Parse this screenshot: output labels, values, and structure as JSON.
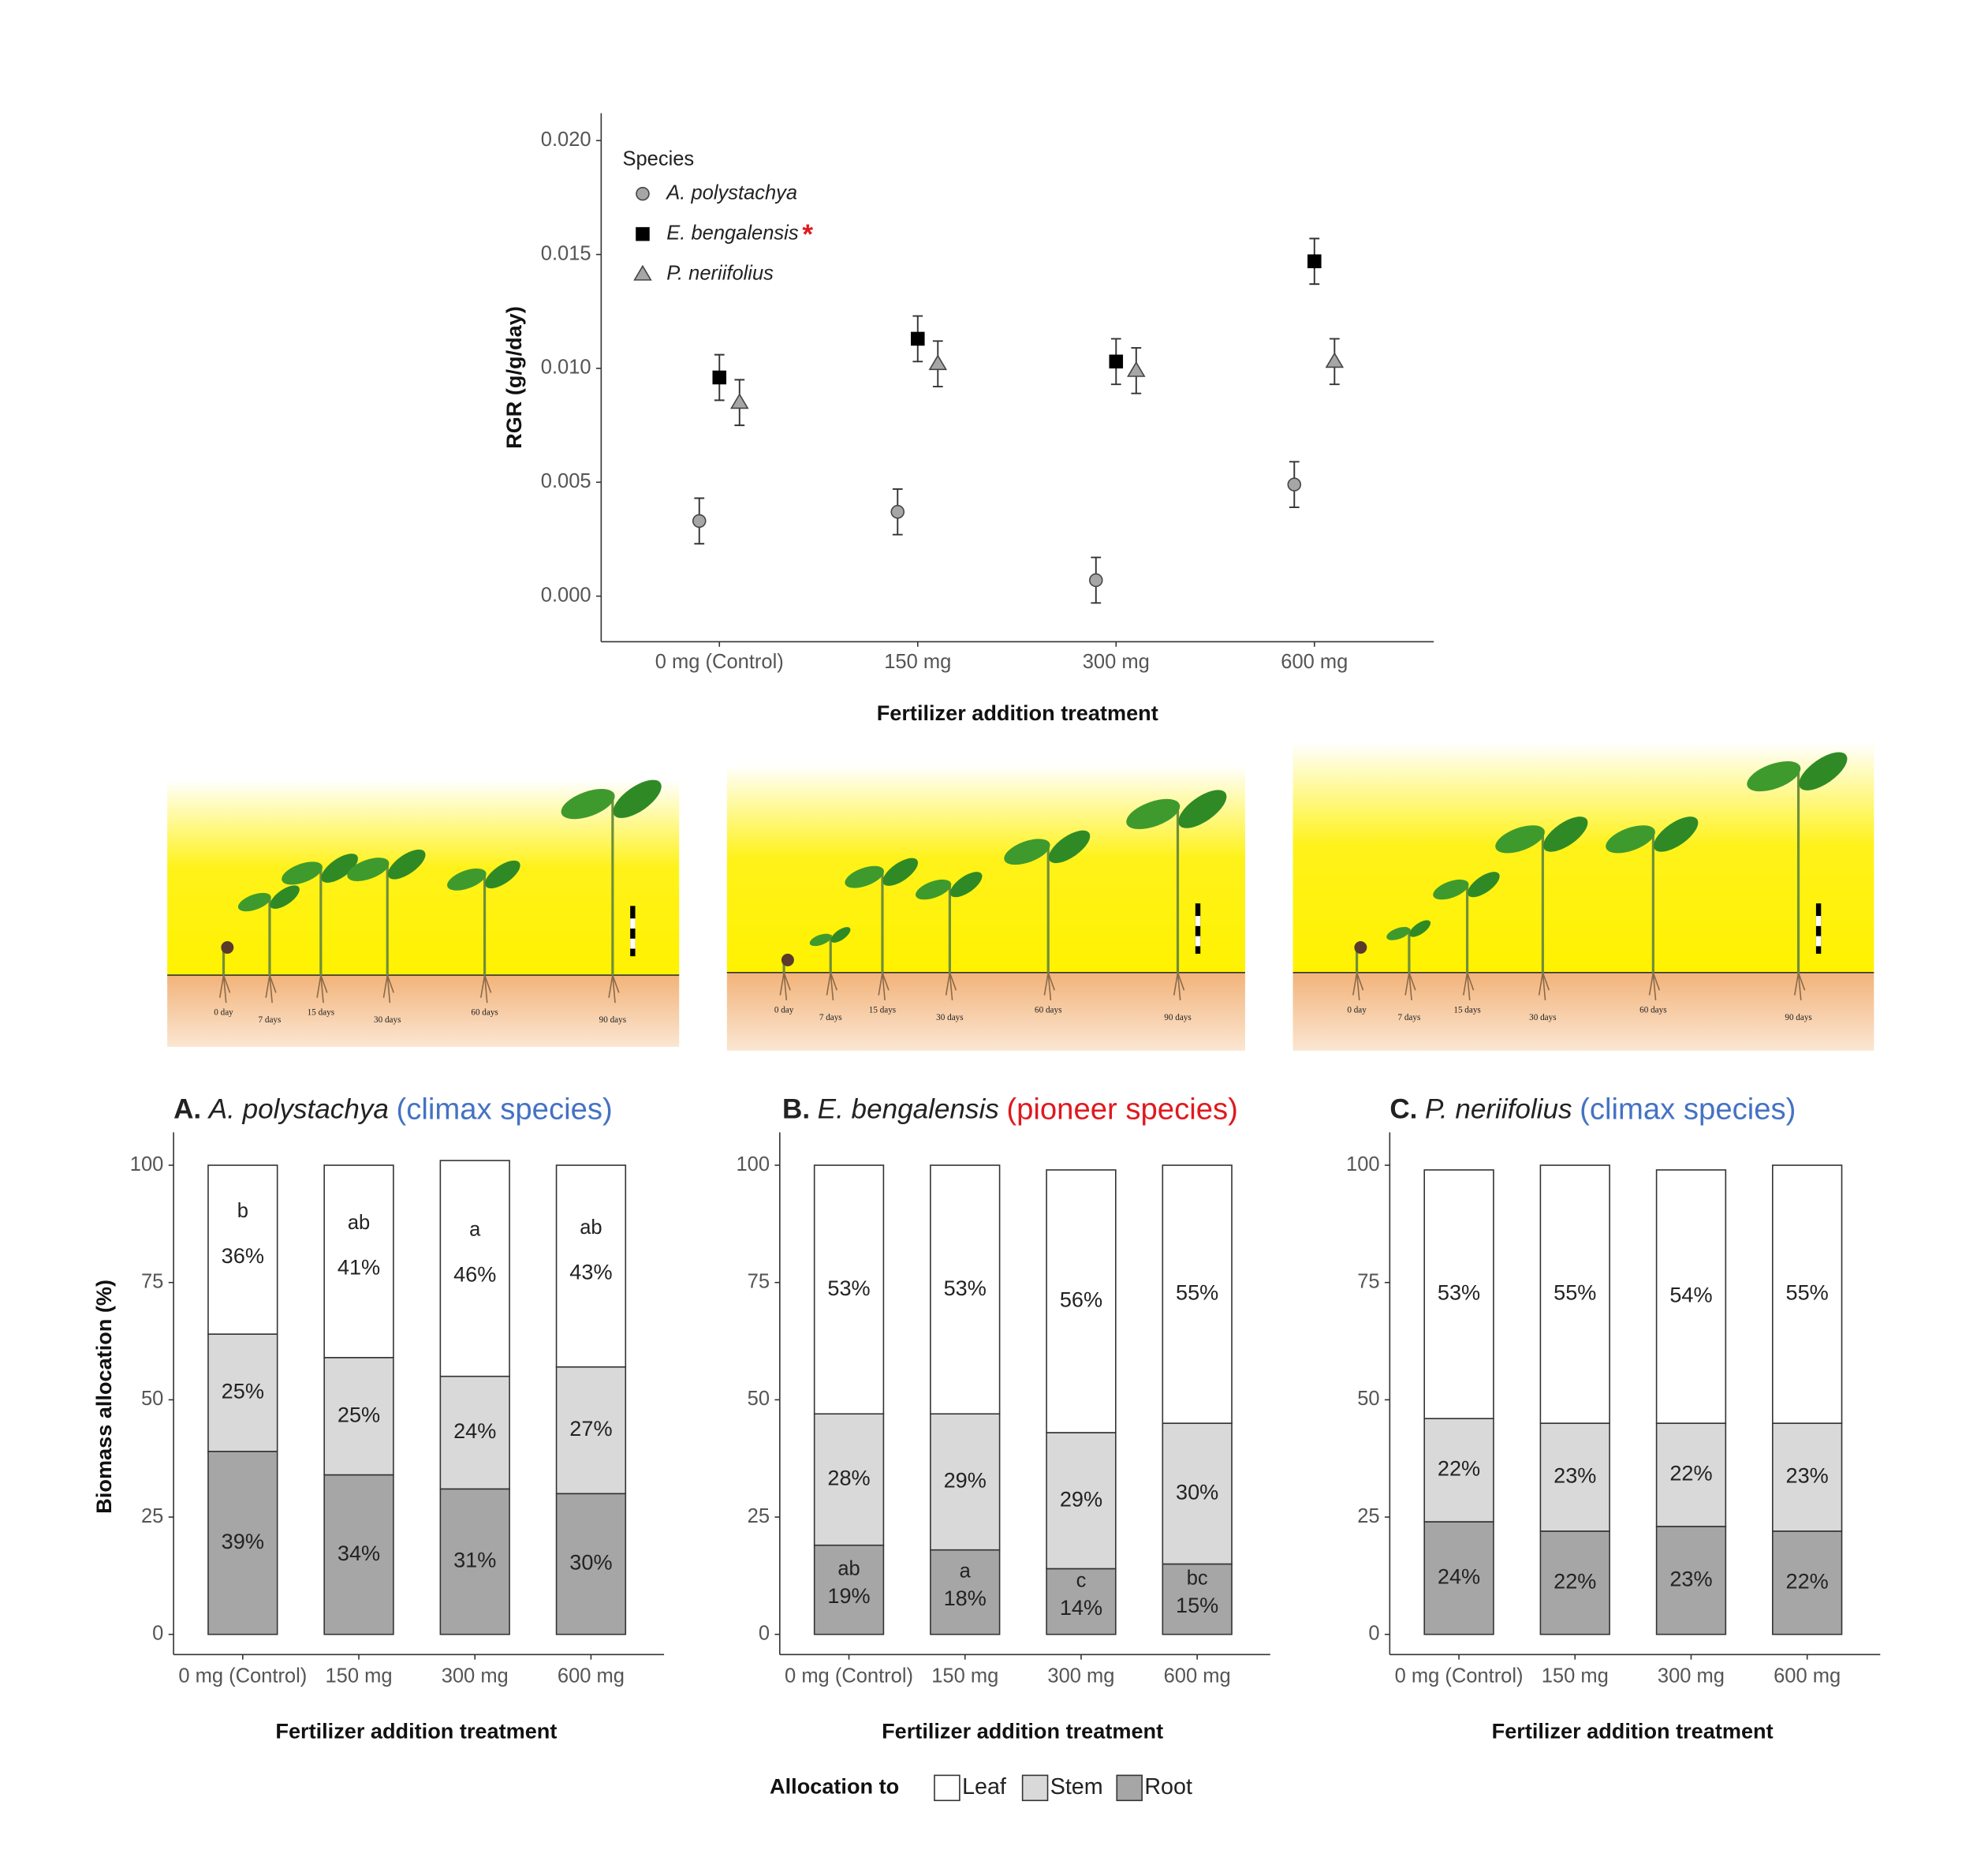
{
  "chart_data": [
    {
      "type": "scatter",
      "categories": [
        "0 mg (Control)",
        "150 mg",
        "300 mg",
        "600 mg"
      ],
      "x_label": "Fertilizer addition treatment",
      "y_label": "RGR (g/g/day)",
      "legend_title": "Species",
      "legend_position": "top-left",
      "ylim": [
        -0.002,
        0.0212
      ],
      "yticks": [
        {
          "value": 0,
          "label": "0.000"
        },
        {
          "value": 0.005,
          "label": "0.005"
        },
        {
          "value": 0.01,
          "label": "0.010"
        },
        {
          "value": 0.015,
          "label": "0.015"
        },
        {
          "value": 0.02,
          "label": "0.020"
        }
      ],
      "series": [
        {
          "name": "A. polystachya",
          "color": "#a6a6a6",
          "marker": "circle",
          "values": [
            0.0033,
            0.0037,
            0.0007,
            0.0049
          ],
          "errors": [
            0.001,
            0.001,
            0.001,
            0.001
          ]
        },
        {
          "name": "E. bengalensis",
          "color": "#000000",
          "marker": "square",
          "annotation": "*",
          "annotation_color": "#e0191f",
          "values": [
            0.0096,
            0.0113,
            0.0103,
            0.0147
          ],
          "errors": [
            0.001,
            0.001,
            0.001,
            0.001
          ]
        },
        {
          "name": "P. neriifolius",
          "color": "#a6a6a6",
          "marker": "triangle",
          "values": [
            0.0085,
            0.0102,
            0.0099,
            0.0103
          ],
          "errors": [
            0.001,
            0.001,
            0.001,
            0.001
          ]
        }
      ]
    },
    {
      "type": "stacked_bar",
      "title_prefix": "A.",
      "title_species": "A. polystachya",
      "title_note": "(climax species)",
      "title_note_color": "#4472c4",
      "categories": [
        "0 mg (Control)",
        "150 mg",
        "300 mg",
        "600 mg"
      ],
      "x_label": "Fertilizer addition treatment",
      "y_label": "Biomass allocation (%)",
      "ylim": [
        -4.3,
        107
      ],
      "yticks": [
        0,
        25,
        50,
        75,
        100
      ],
      "series": [
        {
          "name": "Leaf",
          "color": "#ffffff",
          "values": [
            36,
            41,
            46,
            43
          ],
          "value_labels": [
            "36%",
            "41%",
            "46%",
            "43%"
          ],
          "letters": [
            "b",
            "ab",
            "a",
            "ab"
          ]
        },
        {
          "name": "Stem",
          "color": "#d9d9d9",
          "values": [
            25,
            25,
            24,
            27
          ],
          "value_labels": [
            "25%",
            "25%",
            "24%",
            "27%"
          ]
        },
        {
          "name": "Root",
          "color": "#a6a6a6",
          "values": [
            39,
            34,
            31,
            30
          ],
          "value_labels": [
            "39%",
            "34%",
            "31%",
            "30%"
          ]
        }
      ]
    },
    {
      "type": "stacked_bar",
      "title_prefix": "B.",
      "title_species": "E. bengalensis",
      "title_note": "(pioneer species)",
      "title_note_color": "#e0191f",
      "categories": [
        "0 mg (Control)",
        "150 mg",
        "300 mg",
        "600 mg"
      ],
      "x_label": "Fertilizer addition treatment",
      "legend_title": "Allocation to",
      "ylim": [
        -4.3,
        107
      ],
      "yticks": [
        0,
        25,
        50,
        75,
        100
      ],
      "series": [
        {
          "name": "Leaf",
          "color": "#ffffff",
          "values": [
            53,
            53,
            56,
            55
          ],
          "value_labels": [
            "53%",
            "53%",
            "56%",
            "55%"
          ]
        },
        {
          "name": "Stem",
          "color": "#d9d9d9",
          "values": [
            28,
            29,
            29,
            30
          ],
          "value_labels": [
            "28%",
            "29%",
            "29%",
            "30%"
          ]
        },
        {
          "name": "Root",
          "color": "#a6a6a6",
          "values": [
            19,
            18,
            14,
            15
          ],
          "value_labels": [
            "19%",
            "18%",
            "14%",
            "15%"
          ],
          "letters": [
            "ab",
            "a",
            "c",
            "bc"
          ]
        }
      ]
    },
    {
      "type": "stacked_bar",
      "title_prefix": "C.",
      "title_species": "P. neriifolius",
      "title_note": "(climax species)",
      "title_note_color": "#4472c4",
      "categories": [
        "0 mg (Control)",
        "150 mg",
        "300 mg",
        "600 mg"
      ],
      "x_label": "Fertilizer addition treatment",
      "ylim": [
        -4.3,
        107
      ],
      "yticks": [
        0,
        25,
        50,
        75,
        100
      ],
      "series": [
        {
          "name": "Leaf",
          "color": "#ffffff",
          "values": [
            53,
            55,
            54,
            55
          ],
          "value_labels": [
            "53%",
            "55%",
            "54%",
            "55%"
          ]
        },
        {
          "name": "Stem",
          "color": "#d9d9d9",
          "values": [
            22,
            23,
            22,
            23
          ],
          "value_labels": [
            "22%",
            "23%",
            "22%",
            "23%"
          ]
        },
        {
          "name": "Root",
          "color": "#a6a6a6",
          "values": [
            24,
            22,
            23,
            22
          ],
          "value_labels": [
            "24%",
            "22%",
            "23%",
            "22%"
          ]
        }
      ]
    }
  ],
  "photo_panels": [
    {
      "labels": [
        "0 day",
        "7 days",
        "15 days",
        "30 days",
        "60 days",
        "90 days"
      ]
    },
    {
      "labels": [
        "0 day",
        "7 days",
        "15 days",
        "30 days",
        "60 days",
        "90 days"
      ]
    },
    {
      "labels": [
        "0 day",
        "7 days",
        "15 days",
        "30 days",
        "60 days",
        "90 days"
      ]
    }
  ]
}
